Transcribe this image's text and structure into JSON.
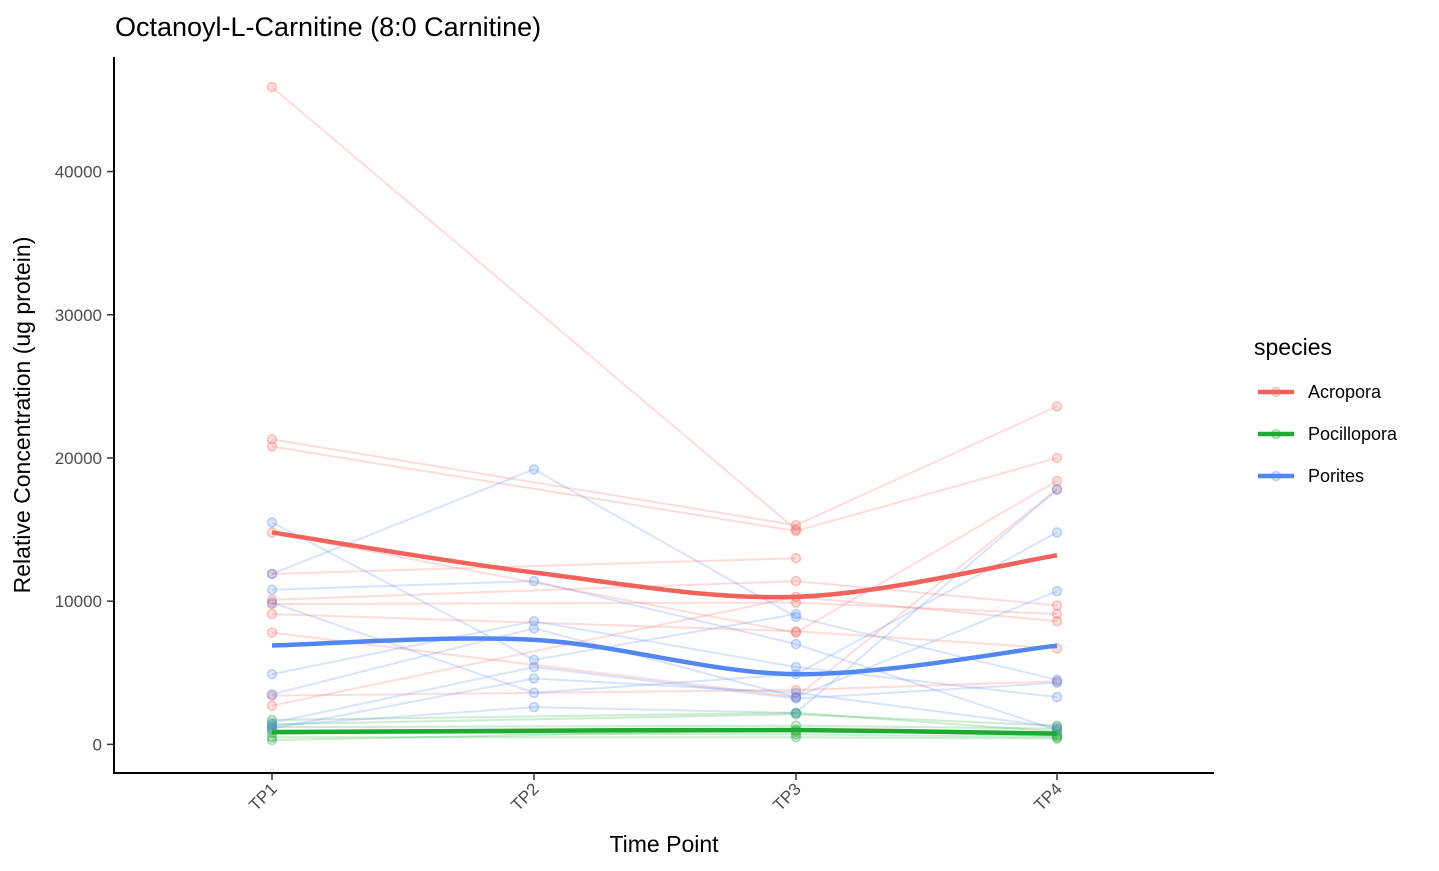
{
  "chart_data": {
    "type": "line",
    "title": "Octanoyl-L-Carnitine (8:0 Carnitine)",
    "xlabel": "Time Point",
    "ylabel": "Relative Concentration (ug protein)",
    "categories": [
      "TP1",
      "TP2",
      "TP3",
      "TP4"
    ],
    "ylim": [
      -2000,
      48000
    ],
    "yticks": [
      0,
      10000,
      20000,
      30000,
      40000
    ],
    "grid": false,
    "legend": {
      "title": "species",
      "position": "right"
    },
    "series": [
      {
        "name": "Acropora",
        "color": "#F0625A",
        "smooth": [
          14800,
          12000,
          10300,
          13200
        ],
        "colonies": [
          [
            45900,
            null,
            15000,
            null
          ],
          [
            21300,
            null,
            15300,
            23600
          ],
          [
            20800,
            null,
            14900,
            20000
          ],
          [
            14800,
            null,
            7800,
            18400
          ],
          [
            11900,
            null,
            13000,
            null
          ],
          [
            10100,
            null,
            11400,
            9700
          ],
          [
            9800,
            null,
            9900,
            9100
          ],
          [
            9100,
            null,
            7900,
            6700
          ],
          [
            7800,
            null,
            3300,
            17800
          ],
          [
            3400,
            null,
            3800,
            4400
          ],
          [
            2700,
            null,
            10300,
            8600
          ]
        ]
      },
      {
        "name": "Pocillopora",
        "color": "#1DAB32",
        "smooth": [
          850,
          950,
          1000,
          750
        ],
        "colonies": [
          [
            1700,
            null,
            2200,
            900
          ],
          [
            1400,
            null,
            2100,
            1300
          ],
          [
            1200,
            null,
            1300,
            1100
          ],
          [
            1000,
            null,
            900,
            700
          ],
          [
            800,
            null,
            700,
            500
          ],
          [
            500,
            null,
            500,
            400
          ],
          [
            300,
            null,
            1000,
            600
          ]
        ]
      },
      {
        "name": "Porites",
        "color": "#5286F0",
        "smooth": [
          6900,
          7300,
          4900,
          6900
        ],
        "colonies": [
          [
            15500,
            5900,
            9100,
            null
          ],
          [
            11900,
            19200,
            8900,
            4500
          ],
          [
            10800,
            11400,
            7000,
            1000
          ],
          [
            9900,
            3600,
            4900,
            14800
          ],
          [
            4900,
            8600,
            5400,
            3300
          ],
          [
            3500,
            8100,
            3300,
            10700
          ],
          [
            1500,
            5400,
            3200,
            4300
          ],
          [
            1300,
            2600,
            2200,
            17800
          ],
          [
            1100,
            4600,
            3600,
            1200
          ]
        ]
      }
    ]
  }
}
